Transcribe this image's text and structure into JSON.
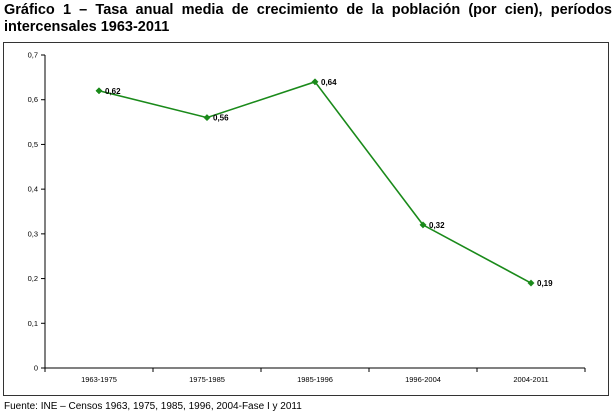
{
  "title": {
    "line1": "Gráfico 1 – Tasa anual media de crecimiento de la población (por cien), períodos",
    "line2": "intercensales 1963-2011"
  },
  "source": "Fuente: INE – Censos 1963,  1975, 1985, 1996, 2004-Fase I y 2011",
  "chart_data": {
    "type": "line",
    "title": "Gráfico 1 – Tasa anual media de crecimiento de la población (por cien), períodos intercensales 1963-2011",
    "xlabel": "",
    "ylabel": "",
    "categories": [
      "1963-1975",
      "1975-1985",
      "1985-1996",
      "1996-2004",
      "2004-2011"
    ],
    "values": [
      0.62,
      0.56,
      0.64,
      0.32,
      0.19
    ],
    "value_labels": [
      "0,62",
      "0,56",
      "0,64",
      "0,32",
      "0,19"
    ],
    "ylim": [
      0,
      0.7
    ],
    "yticks": [
      0,
      0.1,
      0.2,
      0.3,
      0.4,
      0.5,
      0.6,
      0.7
    ],
    "ytick_labels": [
      "0",
      "0,1",
      "0,2",
      "0,3",
      "0,4",
      "0,5",
      "0,6",
      "0,7"
    ],
    "grid": false,
    "legend": "none",
    "line_color": "#1a8a1a",
    "marker": "diamond"
  }
}
